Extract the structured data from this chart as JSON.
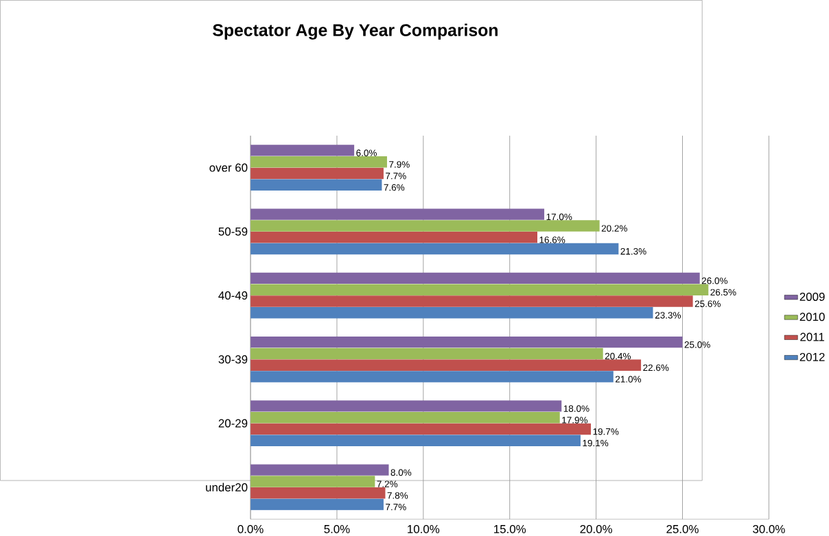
{
  "chart_data": {
    "type": "bar",
    "orientation": "horizontal",
    "title": "Spectator Age By Year Comparison",
    "categories": [
      "over 60",
      "50-59",
      "40-49",
      "30-39",
      "20-29",
      "under20"
    ],
    "series": [
      {
        "name": "2009",
        "color": "#8064a2",
        "values": [
          6.0,
          17.0,
          26.0,
          25.0,
          18.0,
          8.0
        ],
        "value_labels": [
          "6.0%",
          "17.0%",
          "26.0%",
          "25.0%",
          "18.0%",
          "8.0%"
        ]
      },
      {
        "name": "2010",
        "color": "#9bbb59",
        "values": [
          7.9,
          20.2,
          26.5,
          20.4,
          17.9,
          7.2
        ],
        "value_labels": [
          "7.9%",
          "20.2%",
          "26.5%",
          "20.4%",
          "17.9%",
          "7.2%"
        ]
      },
      {
        "name": "2011",
        "color": "#c0504d",
        "values": [
          7.7,
          16.6,
          25.6,
          22.6,
          19.7,
          7.8
        ],
        "value_labels": [
          "7.7%",
          "16.6%",
          "25.6%",
          "22.6%",
          "19.7%",
          "7.8%"
        ]
      },
      {
        "name": "2012",
        "color": "#4f81bd",
        "values": [
          7.6,
          21.3,
          23.3,
          21.0,
          19.1,
          7.7
        ],
        "value_labels": [
          "7.6%",
          "21.3%",
          "23.3%",
          "21.0%",
          "19.1%",
          "7.7%"
        ]
      }
    ],
    "xlim": [
      0,
      30
    ],
    "xticks": [
      {
        "value": 0,
        "label": "0.0%"
      },
      {
        "value": 5,
        "label": "5.0%"
      },
      {
        "value": 10,
        "label": "10.0%"
      },
      {
        "value": 15,
        "label": "15.0%"
      },
      {
        "value": 20,
        "label": "20.0%"
      },
      {
        "value": 25,
        "label": "25.0%"
      },
      {
        "value": 30,
        "label": "30.0%"
      }
    ],
    "grid": "x",
    "legend": "right"
  }
}
